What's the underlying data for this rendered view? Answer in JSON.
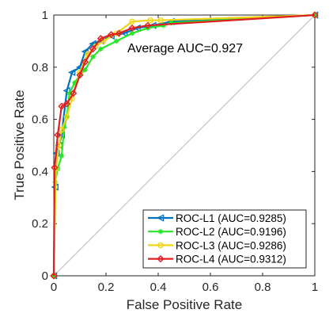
{
  "chart_data": {
    "type": "line",
    "title": "",
    "xlabel": "False Positive Rate",
    "ylabel": "True Positive Rate",
    "xlim": [
      0,
      1
    ],
    "ylim": [
      0,
      1
    ],
    "xticks": [
      "0",
      "0.2",
      "0.4",
      "0.6",
      "0.8",
      "1"
    ],
    "yticks": [
      "0",
      "0.2",
      "0.4",
      "0.6",
      "0.8",
      "1"
    ],
    "grid": false,
    "legend_position": "bottom-right",
    "annotation": "Average AUC=0.927",
    "diagonal_color": "#c8c8c8",
    "series": [
      {
        "name": "ROC-L1 (AUC=0.9285)",
        "color": "#0072BD",
        "marker": "triangle-left",
        "x": [
          0,
          0.005,
          0.01,
          0.02,
          0.03,
          0.05,
          0.07,
          0.1,
          0.12,
          0.15,
          0.18,
          0.22,
          0.27,
          0.32,
          0.38,
          0.45,
          1.0
        ],
        "y": [
          0,
          0.34,
          0.47,
          0.5,
          0.54,
          0.71,
          0.78,
          0.8,
          0.86,
          0.89,
          0.9,
          0.92,
          0.93,
          0.95,
          0.96,
          0.975,
          1.0
        ]
      },
      {
        "name": "ROC-L2 (AUC=0.9196)",
        "color": "#27E627",
        "marker": "star",
        "x": [
          0,
          0.005,
          0.015,
          0.03,
          0.04,
          0.05,
          0.06,
          0.08,
          0.1,
          0.12,
          0.15,
          0.18,
          0.24,
          0.3,
          0.36,
          0.42,
          0.45,
          1.0
        ],
        "y": [
          0,
          0.36,
          0.41,
          0.46,
          0.57,
          0.61,
          0.7,
          0.74,
          0.77,
          0.79,
          0.84,
          0.87,
          0.9,
          0.93,
          0.95,
          0.96,
          0.97,
          1.0
        ]
      },
      {
        "name": "ROC-L3 (AUC=0.9286)",
        "color": "#F2D516",
        "marker": "circle",
        "x": [
          0,
          0.008,
          0.02,
          0.03,
          0.05,
          0.07,
          0.1,
          0.13,
          0.16,
          0.19,
          0.24,
          0.3,
          0.37,
          0.41,
          1.0
        ],
        "y": [
          0,
          0.41,
          0.5,
          0.56,
          0.61,
          0.68,
          0.78,
          0.85,
          0.88,
          0.9,
          0.93,
          0.975,
          0.98,
          0.98,
          1.0
        ]
      },
      {
        "name": "ROC-L4 (AUC=0.9312)",
        "color": "#E02020",
        "marker": "diamond",
        "x": [
          0,
          0.003,
          0.015,
          0.03,
          0.05,
          0.075,
          0.1,
          0.12,
          0.15,
          0.18,
          0.22,
          0.25,
          0.3,
          0.36,
          1.0
        ],
        "y": [
          0,
          0.415,
          0.54,
          0.65,
          0.66,
          0.7,
          0.77,
          0.82,
          0.87,
          0.91,
          0.925,
          0.93,
          0.95,
          0.96,
          1.0
        ]
      }
    ]
  }
}
